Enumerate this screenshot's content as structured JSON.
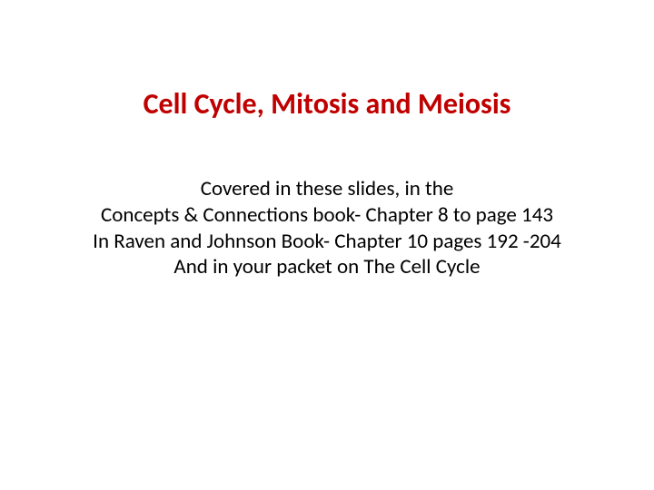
{
  "slide": {
    "title": "Cell Cycle, Mitosis and Meiosis",
    "title_color": "#c00000",
    "title_fontsize": 32,
    "title_fontweight": "bold",
    "body_lines": [
      "Covered in these slides, in the",
      "Concepts & Connections book- Chapter 8 to page 143",
      "In Raven and Johnson Book- Chapter 10 pages 192 -204",
      "And in your packet on The Cell Cycle"
    ],
    "body_color": "#000000",
    "body_fontsize": 23,
    "background_color": "#ffffff"
  }
}
